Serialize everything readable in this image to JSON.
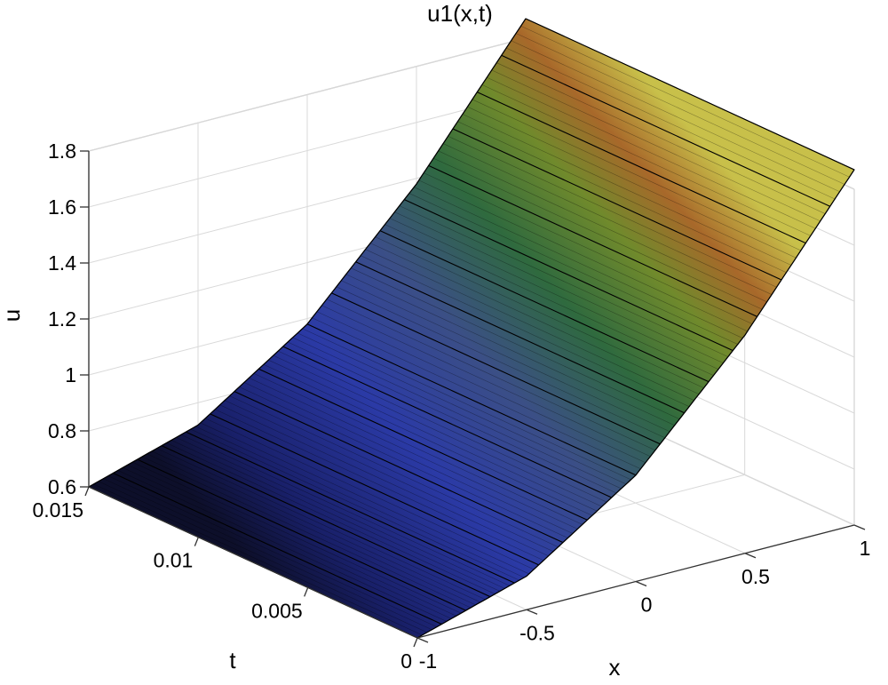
{
  "chart_data": {
    "type": "surface",
    "title": "u1(x,t)",
    "xlabel": "x",
    "ylabel": "t",
    "zlabel": "u",
    "xlim": [
      -1,
      1
    ],
    "ylim": [
      0,
      0.015
    ],
    "zlim": [
      0.6,
      1.8
    ],
    "xticks": [
      -1,
      -0.5,
      0,
      0.5,
      1
    ],
    "xtick_labels": [
      "-1",
      "-0.5",
      "0",
      "0.5",
      "1"
    ],
    "yticks": [
      0,
      0.005,
      0.01,
      0.015
    ],
    "ytick_labels": [
      "0",
      "0.005",
      "0.01",
      "0.015"
    ],
    "zticks": [
      0.6,
      0.8,
      1,
      1.2,
      1.4,
      1.6,
      1.8
    ],
    "ztick_labels": [
      "0.6",
      "0.8",
      "1",
      "1.2",
      "1.4",
      "1.6",
      "1.8"
    ],
    "grid": true,
    "colormap": "parula-like shaded surface (dark blue low, green mid, orange/yellow high)",
    "surface_profile": {
      "x": [
        -1,
        -0.5,
        0,
        0.5,
        1
      ],
      "u": [
        0.6,
        0.72,
        0.98,
        1.38,
        1.87
      ]
    }
  }
}
